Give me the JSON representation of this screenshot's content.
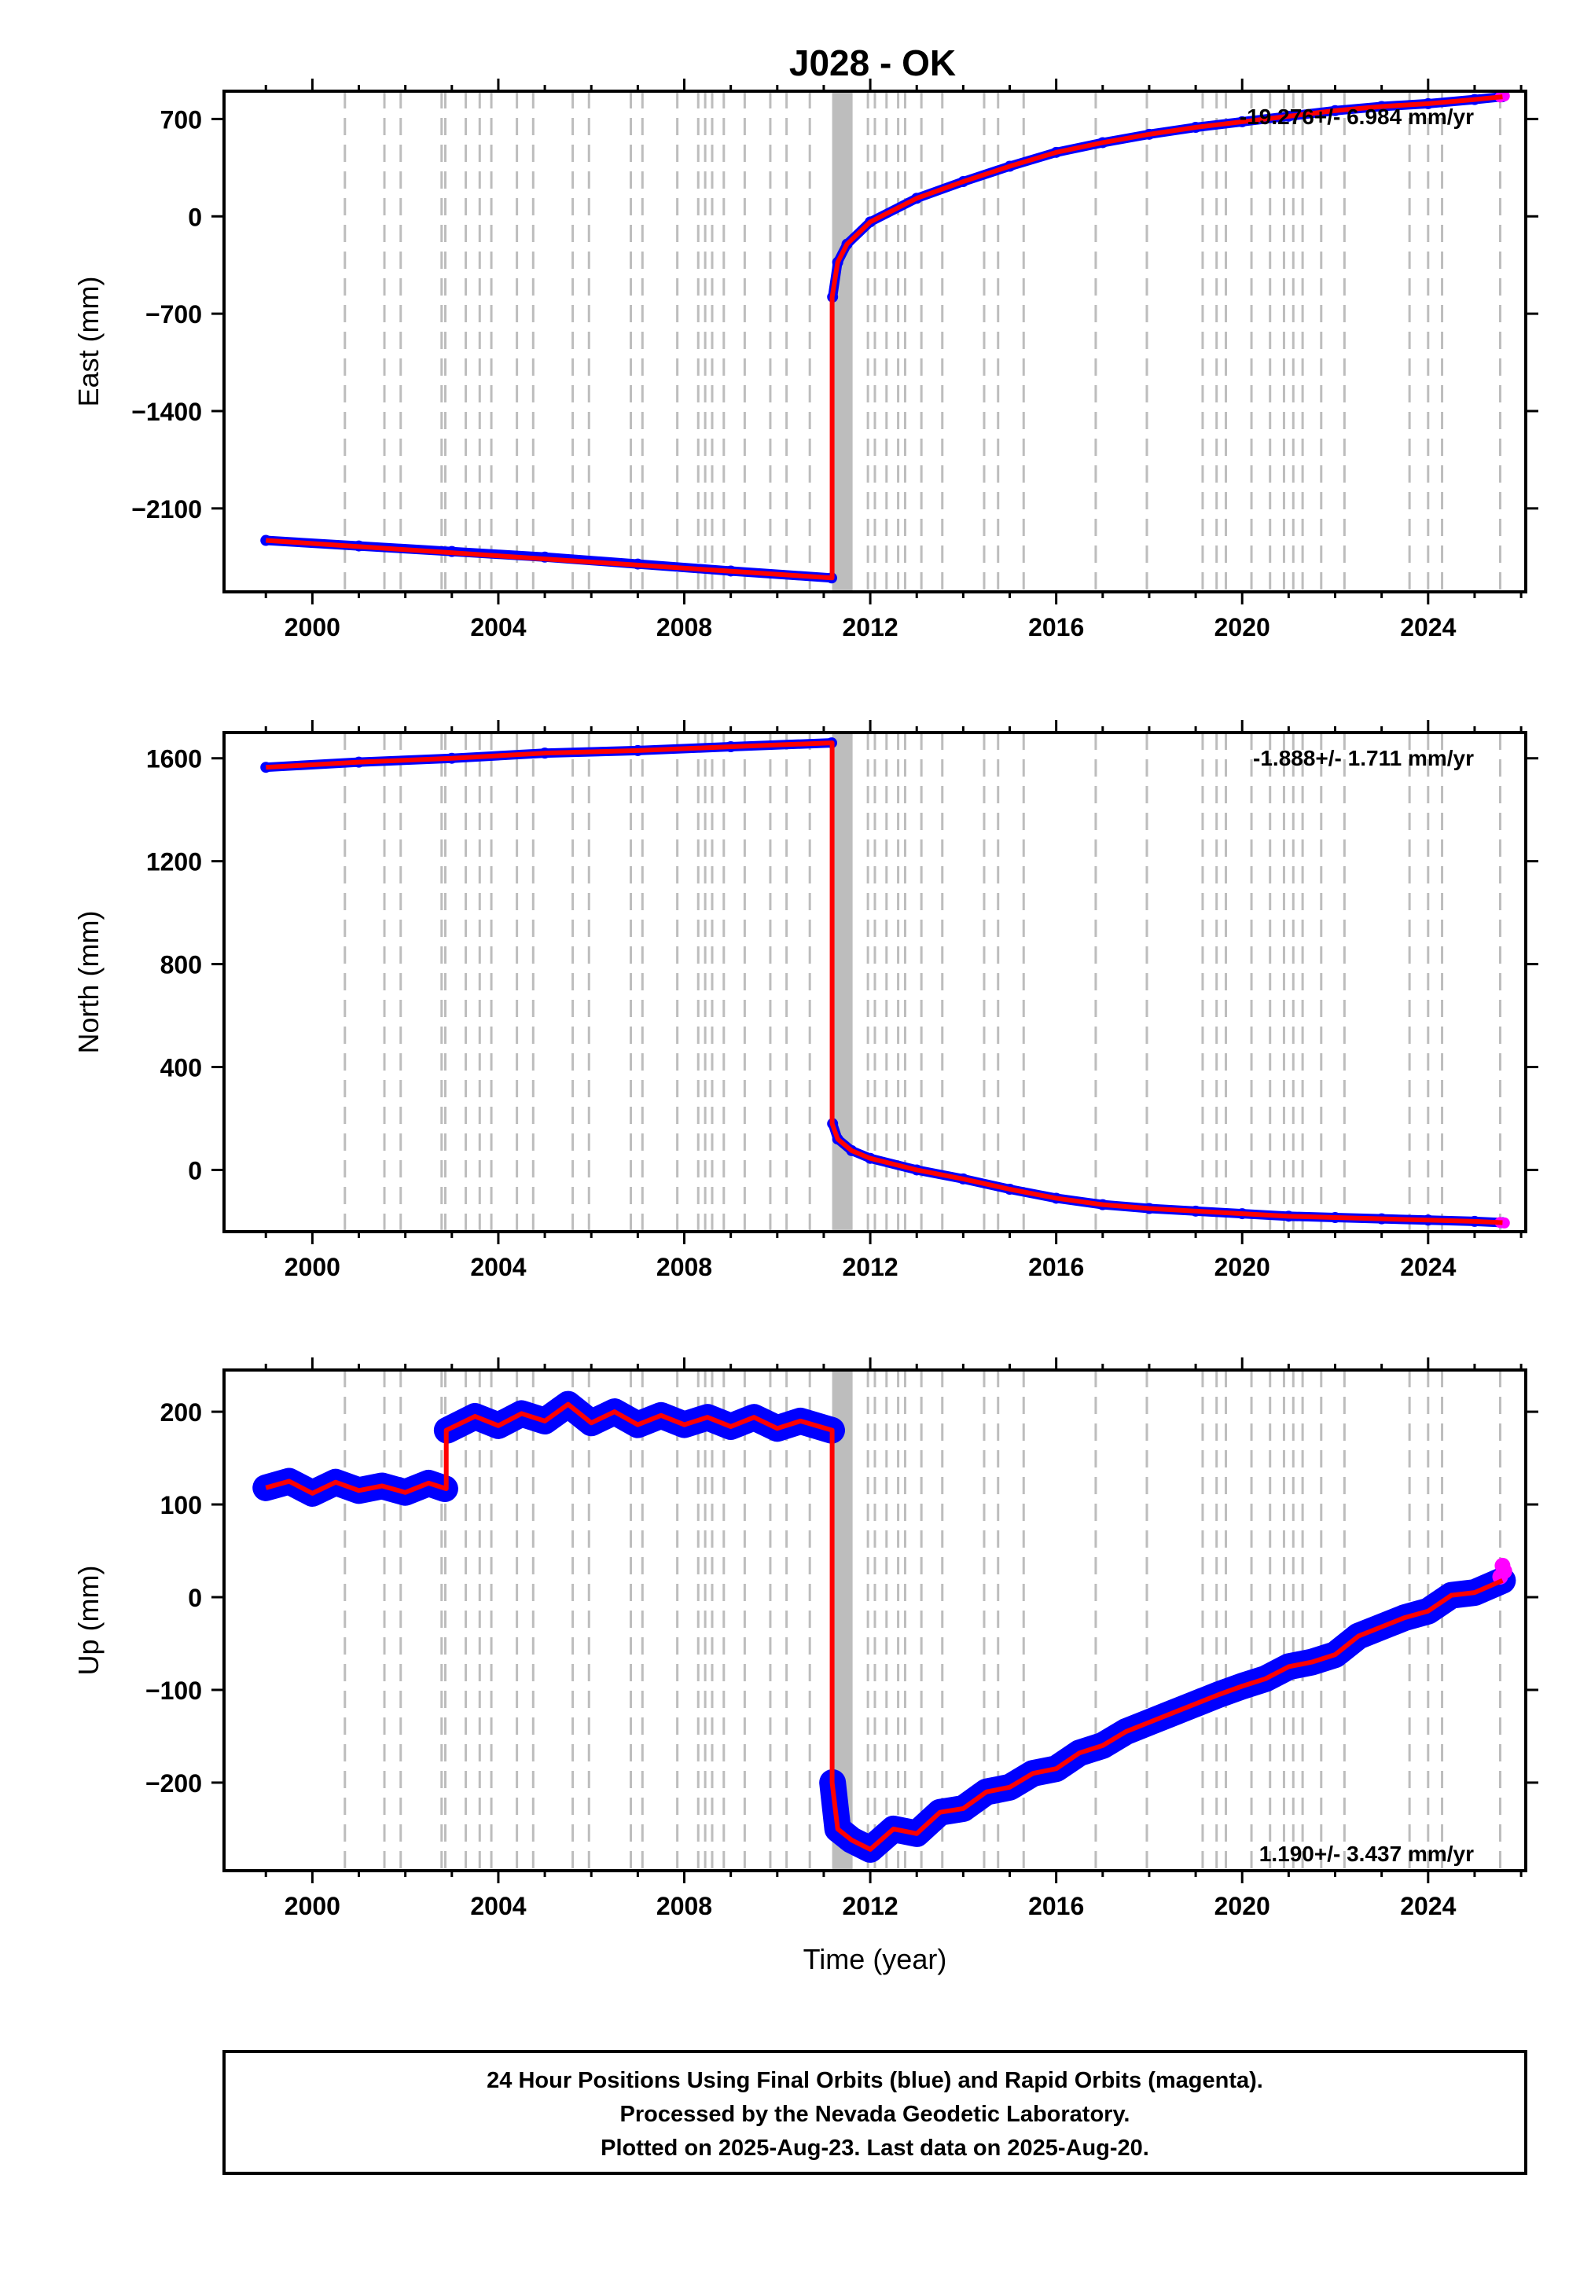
{
  "title": "J028 - OK",
  "chart_data": [
    {
      "type": "scatter",
      "panel": "east",
      "ylabel": "East (mm)",
      "xlim": [
        1998.1,
        2026.1
      ],
      "ylim": [
        -2700,
        900
      ],
      "yticks": [
        700,
        0,
        -700,
        -1400,
        -2100
      ],
      "xticks": [
        2000,
        2004,
        2008,
        2012,
        2016,
        2020,
        2024
      ],
      "rate_label": "-19.276+/- 6.984 mm/yr",
      "rate_position": "top-right",
      "series": [
        {
          "name": "Final Orbits",
          "color": "#0000ff",
          "segments": [
            {
              "x": [
                1999.0,
                2001.0,
                2003.0,
                2005.0,
                2007.0,
                2009.0,
                2011.17
              ],
              "y": [
                -2330,
                -2370,
                -2410,
                -2450,
                -2500,
                -2550,
                -2600
              ]
            },
            {
              "x": [
                2011.19,
                2011.3,
                2011.5,
                2012.0,
                2013.0,
                2014.0,
                2015.0,
                2016.0,
                2017.0,
                2018.0,
                2019.0,
                2020.0,
                2021.0,
                2022.0,
                2023.0,
                2024.0,
                2025.0,
                2025.6
              ],
              "y": [
                -580,
                -330,
                -200,
                -40,
                130,
                250,
                360,
                460,
                530,
                590,
                640,
                680,
                720,
                760,
                790,
                810,
                840,
                860
              ]
            }
          ]
        },
        {
          "name": "Rapid Orbits",
          "color": "#ff00ff",
          "segments": [
            {
              "x": [
                2025.55,
                2025.64
              ],
              "y": [
                858,
                866
              ]
            }
          ]
        },
        {
          "name": "Model",
          "color": "#ff0000",
          "segments": [
            {
              "x": [
                1999.0,
                2011.18,
                2011.18,
                2011.3,
                2011.5,
                2012.0,
                2013.0,
                2014.0,
                2015.0,
                2016.0,
                2017.0,
                2018.0,
                2019.0,
                2020.0,
                2021.0,
                2022.0,
                2023.0,
                2024.0,
                2025.0,
                2025.6
              ],
              "y": [
                -2330,
                -2600,
                -580,
                -330,
                -200,
                -40,
                130,
                250,
                360,
                460,
                530,
                590,
                640,
                680,
                720,
                760,
                790,
                810,
                840,
                860
              ]
            }
          ]
        }
      ]
    },
    {
      "type": "scatter",
      "panel": "north",
      "ylabel": "North (mm)",
      "xlim": [
        1998.1,
        2026.1
      ],
      "ylim": [
        -240,
        1700
      ],
      "yticks": [
        1600,
        1200,
        800,
        400,
        0
      ],
      "xticks": [
        2000,
        2004,
        2008,
        2012,
        2016,
        2020,
        2024
      ],
      "rate_label": "-1.888+/- 1.711 mm/yr",
      "rate_position": "top-right",
      "series": [
        {
          "name": "Final Orbits",
          "color": "#0000ff",
          "segments": [
            {
              "x": [
                1999.0,
                2001.0,
                2003.0,
                2005.0,
                2007.0,
                2009.0,
                2011.17
              ],
              "y": [
                1565,
                1585,
                1600,
                1620,
                1630,
                1645,
                1660
              ]
            },
            {
              "x": [
                2011.19,
                2011.3,
                2011.6,
                2012.0,
                2013.0,
                2014.0,
                2015.0,
                2016.0,
                2017.0,
                2018.0,
                2019.0,
                2020.0,
                2021.0,
                2022.0,
                2023.0,
                2024.0,
                2025.0,
                2025.6
              ],
              "y": [
                180,
                120,
                75,
                45,
                0,
                -35,
                -75,
                -110,
                -135,
                -150,
                -160,
                -170,
                -180,
                -185,
                -190,
                -195,
                -200,
                -205
              ]
            }
          ]
        },
        {
          "name": "Rapid Orbits",
          "color": "#ff00ff",
          "segments": [
            {
              "x": [
                2025.55,
                2025.64
              ],
              "y": [
                -204,
                -206
              ]
            }
          ]
        },
        {
          "name": "Model",
          "color": "#ff0000",
          "segments": [
            {
              "x": [
                1999.0,
                2001.0,
                2003.0,
                2005.0,
                2007.0,
                2009.0,
                2011.18,
                2011.18,
                2011.3,
                2011.6,
                2012.0,
                2013.0,
                2014.0,
                2015.0,
                2016.0,
                2017.0,
                2018.0,
                2019.0,
                2020.0,
                2021.0,
                2022.0,
                2023.0,
                2024.0,
                2025.0,
                2025.6
              ],
              "y": [
                1565,
                1585,
                1600,
                1620,
                1630,
                1645,
                1660,
                180,
                120,
                75,
                45,
                0,
                -35,
                -75,
                -110,
                -135,
                -150,
                -160,
                -170,
                -180,
                -185,
                -190,
                -195,
                -200,
                -205
              ]
            }
          ]
        }
      ]
    },
    {
      "type": "scatter",
      "panel": "up",
      "ylabel": "Up (mm)",
      "xlabel": "Time (year)",
      "xlim": [
        1998.1,
        2026.1
      ],
      "ylim": [
        -295,
        245
      ],
      "yticks": [
        200,
        100,
        0,
        -100,
        -200
      ],
      "xticks": [
        2000,
        2004,
        2008,
        2012,
        2016,
        2020,
        2024
      ],
      "rate_label": "1.190+/- 3.437 mm/yr",
      "rate_position": "bottom-right",
      "series": [
        {
          "name": "Final Orbits",
          "color": "#0000ff",
          "segments": [
            {
              "x": [
                1999.0,
                1999.5,
                2000.0,
                2000.5,
                2001.0,
                2001.5,
                2002.0,
                2002.5,
                2002.85
              ],
              "y": [
                118,
                125,
                112,
                124,
                115,
                120,
                113,
                123,
                117
              ]
            },
            {
              "x": [
                2002.9,
                2003.5,
                2004.0,
                2004.5,
                2005.0,
                2005.5,
                2006.0,
                2006.5,
                2007.0,
                2007.5,
                2008.0,
                2008.5,
                2009.0,
                2009.5,
                2010.0,
                2010.5,
                2011.17
              ],
              "y": [
                180,
                195,
                185,
                198,
                190,
                208,
                188,
                200,
                186,
                196,
                186,
                194,
                184,
                194,
                182,
                190,
                180
              ]
            },
            {
              "x": [
                2011.19,
                2011.3,
                2011.6,
                2012.0,
                2012.5,
                2013.0,
                2013.5,
                2014.0,
                2014.5,
                2015.0,
                2015.5,
                2016.0,
                2016.5,
                2017.0,
                2017.5,
                2018.0,
                2018.5,
                2019.0,
                2019.5,
                2020.0,
                2020.5,
                2021.0,
                2021.5,
                2022.0,
                2022.5,
                2023.0,
                2023.5,
                2024.0,
                2024.5,
                2025.0,
                2025.6
              ],
              "y": [
                -200,
                -250,
                -262,
                -272,
                -250,
                -255,
                -232,
                -228,
                -210,
                -205,
                -190,
                -185,
                -168,
                -160,
                -145,
                -135,
                -125,
                -115,
                -105,
                -96,
                -88,
                -75,
                -70,
                -62,
                -42,
                -32,
                -22,
                -15,
                2,
                5,
                18
              ]
            }
          ]
        },
        {
          "name": "Rapid Orbits",
          "color": "#ff00ff",
          "segments": [
            {
              "x": [
                2025.55,
                2025.6,
                2025.64
              ],
              "y": [
                22,
                34,
                28
              ]
            }
          ]
        },
        {
          "name": "Model",
          "color": "#ff0000",
          "segments": [
            {
              "x": [
                1999.0,
                1999.5,
                2000.0,
                2000.5,
                2001.0,
                2001.5,
                2002.0,
                2002.5,
                2002.88,
                2002.88,
                2003.5,
                2004.0,
                2004.5,
                2005.0,
                2005.5,
                2006.0,
                2006.5,
                2007.0,
                2007.5,
                2008.0,
                2008.5,
                2009.0,
                2009.5,
                2010.0,
                2010.5,
                2011.18,
                2011.18,
                2011.3,
                2011.6,
                2012.0,
                2012.5,
                2013.0,
                2013.5,
                2014.0,
                2014.5,
                2015.0,
                2015.5,
                2016.0,
                2016.5,
                2017.0,
                2017.5,
                2018.0,
                2018.5,
                2019.0,
                2019.5,
                2020.0,
                2020.5,
                2021.0,
                2021.5,
                2022.0,
                2022.5,
                2023.0,
                2023.5,
                2024.0,
                2024.5,
                2025.0,
                2025.6
              ],
              "y": [
                118,
                125,
                112,
                124,
                115,
                120,
                113,
                123,
                117,
                180,
                195,
                185,
                198,
                190,
                208,
                188,
                200,
                186,
                196,
                186,
                194,
                184,
                194,
                182,
                190,
                180,
                -200,
                -250,
                -262,
                -272,
                -250,
                -255,
                -232,
                -228,
                -210,
                -205,
                -190,
                -185,
                -168,
                -160,
                -145,
                -135,
                -125,
                -115,
                -105,
                -96,
                -88,
                -75,
                -70,
                -62,
                -42,
                -32,
                -22,
                -15,
                2,
                5,
                18
              ]
            }
          ]
        }
      ]
    }
  ],
  "event_lines": {
    "color": "#bdbdbd",
    "dashed": [
      2000.7,
      2001.55,
      2001.9,
      2002.78,
      2002.86,
      2003.3,
      2003.6,
      2003.85,
      2004.4,
      2004.75,
      2005.6,
      2005.95,
      2006.85,
      2007.1,
      2007.85,
      2008.3,
      2008.45,
      2008.6,
      2008.85,
      2009.3,
      2009.85,
      2010.2,
      2010.7,
      2011.95,
      2012.1,
      2012.35,
      2012.6,
      2012.75,
      2013.1,
      2013.55,
      2014.45,
      2014.75,
      2015.3,
      2016.85,
      2017.95,
      2019.15,
      2019.45,
      2019.65,
      2020.2,
      2020.6,
      2020.9,
      2021.1,
      2021.3,
      2021.7,
      2022.2,
      2023.6,
      2024.0,
      2024.3,
      2025.55
    ],
    "dense_band": [
      2011.18,
      2011.62
    ]
  },
  "footer": {
    "line1": "24 Hour Positions Using Final Orbits (blue) and Rapid Orbits (magenta).",
    "line2": "Processed by the Nevada Geodetic Laboratory.",
    "line3": "Plotted on 2025-Aug-23. Last data on 2025-Aug-20."
  }
}
